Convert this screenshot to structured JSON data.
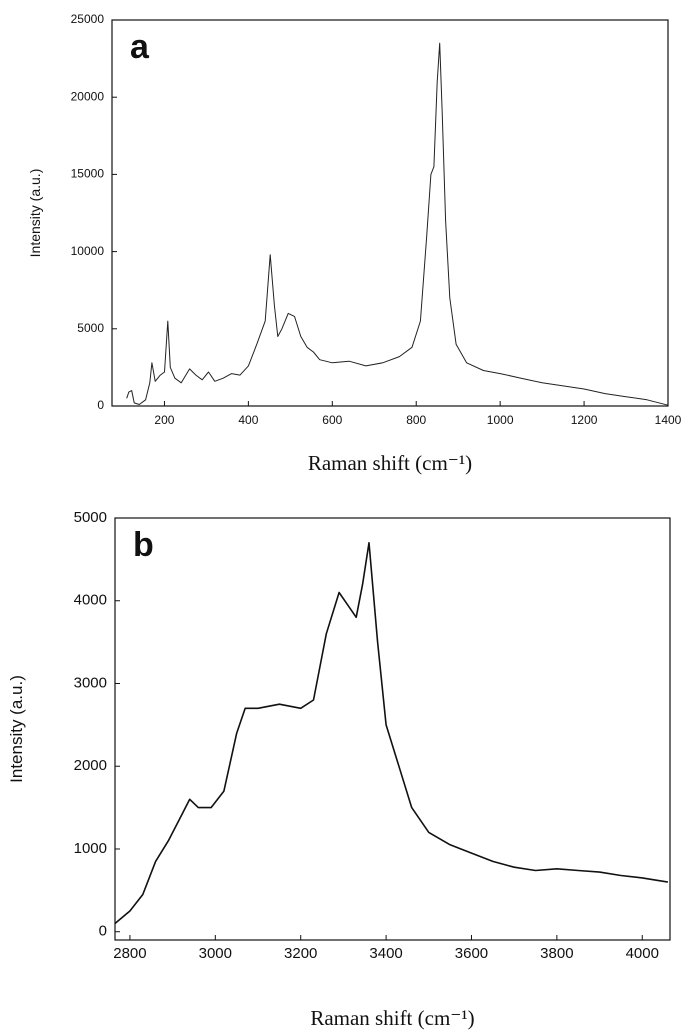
{
  "chart_data": [
    {
      "type": "line",
      "label": "a",
      "x_label": "Raman shift (cm⁻¹)",
      "y_label": "Intensity (a.u.)",
      "xlim": [
        75,
        1400
      ],
      "xticks": [
        200,
        400,
        600,
        800,
        1000,
        1200,
        1400
      ],
      "ylim": [
        0,
        25000
      ],
      "yticks": [
        0,
        5000,
        10000,
        15000,
        20000,
        25000
      ],
      "series": [
        {
          "color": "#222222",
          "x": [
            110,
            115,
            122,
            128,
            140,
            155,
            165,
            170,
            178,
            190,
            200,
            208,
            214,
            225,
            240,
            260,
            275,
            290,
            305,
            320,
            340,
            360,
            380,
            400,
            420,
            440,
            452,
            462,
            470,
            480,
            495,
            510,
            525,
            540,
            555,
            570,
            600,
            640,
            680,
            720,
            760,
            790,
            810,
            825,
            835,
            842,
            850,
            856,
            862,
            870,
            880,
            895,
            920,
            960,
            1000,
            1050,
            1100,
            1150,
            1200,
            1250,
            1300,
            1350,
            1400
          ],
          "values": [
            500,
            900,
            1000,
            200,
            100,
            400,
            1500,
            2800,
            1600,
            2000,
            2200,
            5500,
            2500,
            1800,
            1500,
            2400,
            2000,
            1700,
            2200,
            1600,
            1800,
            2100,
            2000,
            2600,
            4000,
            5500,
            9800,
            6500,
            4500,
            5000,
            6000,
            5800,
            4500,
            3800,
            3500,
            3000,
            2800,
            2900,
            2600,
            2800,
            3200,
            3800,
            5500,
            11000,
            15000,
            15500,
            21000,
            23500,
            19000,
            12000,
            7000,
            4000,
            2800,
            2300,
            2100,
            1800,
            1500,
            1300,
            1100,
            800,
            600,
            400,
            50
          ]
        }
      ]
    },
    {
      "type": "line",
      "label": "b",
      "x_label": "Raman shift (cm⁻¹)",
      "y_label": "Intensity (a.u.)",
      "xlim": [
        2765,
        4065
      ],
      "xticks": [
        2800,
        3000,
        3200,
        3400,
        3600,
        3800,
        4000
      ],
      "ylim": [
        -100,
        5000
      ],
      "yticks": [
        0,
        1000,
        2000,
        3000,
        4000,
        5000
      ],
      "series": [
        {
          "color": "#111111",
          "x": [
            2765,
            2800,
            2830,
            2860,
            2890,
            2920,
            2940,
            2960,
            2990,
            3020,
            3050,
            3070,
            3100,
            3150,
            3200,
            3230,
            3260,
            3290,
            3310,
            3330,
            3345,
            3360,
            3380,
            3400,
            3430,
            3460,
            3500,
            3550,
            3600,
            3650,
            3700,
            3750,
            3800,
            3850,
            3900,
            3950,
            4000,
            4060
          ],
          "values": [
            100,
            250,
            450,
            850,
            1100,
            1400,
            1600,
            1500,
            1500,
            1700,
            2400,
            2700,
            2700,
            2750,
            2700,
            2800,
            3600,
            4100,
            3950,
            3800,
            4200,
            4700,
            3500,
            2500,
            2000,
            1500,
            1200,
            1050,
            950,
            850,
            780,
            740,
            760,
            740,
            720,
            680,
            650,
            600
          ]
        }
      ]
    }
  ]
}
